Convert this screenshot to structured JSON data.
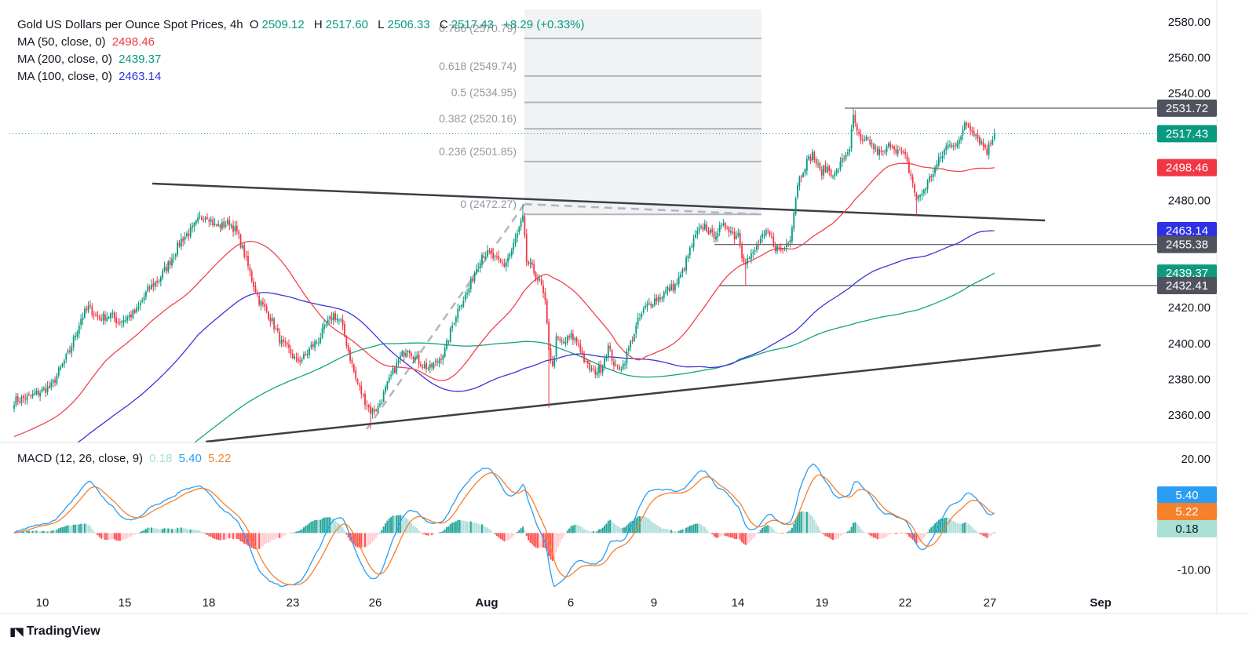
{
  "header": {
    "symbol": "Gold US Dollars per Ounce Spot Prices, 4h",
    "open_label": "O",
    "open": "2509.12",
    "high_label": "H",
    "high": "2517.60",
    "low_label": "L",
    "low": "2506.33",
    "close_label": "C",
    "close": "2517.43",
    "change": "+8.29 (+0.33%)",
    "ma50_label": "MA (50, close, 0)",
    "ma50_value": "2498.46",
    "ma200_label": "MA (200, close, 0)",
    "ma200_value": "2439.37",
    "ma100_label": "MA (100, close, 0)",
    "ma100_value": "2463.14",
    "macd_label": "MACD (12, 26, close, 9)",
    "macd_hist": "0.18",
    "macd_line": "5.40",
    "macd_signal": "5.22"
  },
  "brand": {
    "name": "TradingView"
  },
  "colors": {
    "up": "#089981",
    "down": "#f23645",
    "ma50": "#f0444e",
    "ma100": "#3a35d8",
    "ma200": "#13a37d",
    "macd": "#2a9df4",
    "signal": "#f7802b",
    "trendline": "#3c3f47",
    "fib": "#b2b5be"
  },
  "chart_data": {
    "type": "candlestick",
    "title": "Gold US Dollars per Ounce Spot Prices, 4h",
    "price_axis": {
      "ticks": [
        "2580.00",
        "2560.00",
        "2540.00",
        "2520.00",
        "2500.00",
        "2480.00",
        "2460.00",
        "2440.00",
        "2420.00",
        "2400.00",
        "2380.00",
        "2360.00"
      ],
      "range": [
        2345,
        2587
      ]
    },
    "time_axis": {
      "ticks": [
        "10",
        "15",
        "18",
        "23",
        "26",
        "Aug",
        "6",
        "9",
        "14",
        "19",
        "22",
        "27",
        "Sep"
      ]
    },
    "price_badges": [
      {
        "label": "2531.72",
        "value": 2531.72,
        "color": "#50535e"
      },
      {
        "label": "2517.43",
        "value": 2517.43,
        "color": "#089981"
      },
      {
        "label": "2498.46",
        "value": 2498.46,
        "color": "#f23645"
      },
      {
        "label": "2463.14",
        "value": 2463.14,
        "color": "#2e30e6"
      },
      {
        "label": "2455.38",
        "value": 2455.38,
        "color": "#50535e"
      },
      {
        "label": "2439.37",
        "value": 2439.37,
        "color": "#0f9a7e"
      },
      {
        "label": "2432.41",
        "value": 2432.41,
        "color": "#50535e"
      }
    ],
    "fibonacci": [
      {
        "label": "0 (2472.27)",
        "value": 2472.27
      },
      {
        "label": "0.236 (2501.85)",
        "value": 2501.85
      },
      {
        "label": "0.382 (2520.16)",
        "value": 2520.16
      },
      {
        "label": "0.5 (2534.95)",
        "value": 2534.95
      },
      {
        "label": "0.618 (2549.74)",
        "value": 2549.74
      },
      {
        "label": "0.786 (2570.79)",
        "value": 2570.79
      }
    ],
    "horizontal_levels": [
      2531.72,
      2455.38,
      2432.41
    ],
    "moving_averages": [
      {
        "name": "MA (50, close, 0)",
        "last": 2498.46
      },
      {
        "name": "MA (100, close, 0)",
        "last": 2463.14
      },
      {
        "name": "MA (200, close, 0)",
        "last": 2439.37
      }
    ],
    "macd": {
      "axis_ticks": [
        "20.00",
        "-10.00"
      ],
      "range": [
        -16,
        24
      ],
      "badges": [
        {
          "label": "5.40",
          "value": 5.4,
          "color": "#2a9df4"
        },
        {
          "label": "5.22",
          "value": 5.22,
          "color": "#f7802b"
        },
        {
          "label": "0.18",
          "value": 0.18,
          "color": "#a9dfd5"
        }
      ]
    },
    "price_path": [
      [
        0,
        2368
      ],
      [
        8,
        2370
      ],
      [
        20,
        2376
      ],
      [
        30,
        2396
      ],
      [
        36,
        2414
      ],
      [
        40,
        2420
      ],
      [
        46,
        2414
      ],
      [
        52,
        2416
      ],
      [
        56,
        2412
      ],
      [
        60,
        2414
      ],
      [
        66,
        2418
      ],
      [
        72,
        2430
      ],
      [
        78,
        2436
      ],
      [
        84,
        2446
      ],
      [
        90,
        2458
      ],
      [
        96,
        2464
      ],
      [
        100,
        2470
      ],
      [
        104,
        2472
      ],
      [
        108,
        2466
      ],
      [
        112,
        2466
      ],
      [
        116,
        2468
      ],
      [
        120,
        2462
      ],
      [
        124,
        2450
      ],
      [
        128,
        2436
      ],
      [
        132,
        2424
      ],
      [
        136,
        2418
      ],
      [
        140,
        2410
      ],
      [
        144,
        2400
      ],
      [
        148,
        2396
      ],
      [
        152,
        2390
      ],
      [
        156,
        2392
      ],
      [
        160,
        2398
      ],
      [
        164,
        2402
      ],
      [
        168,
        2410
      ],
      [
        172,
        2416
      ],
      [
        176,
        2412
      ],
      [
        180,
        2396
      ],
      [
        184,
        2380
      ],
      [
        188,
        2370
      ],
      [
        192,
        2362
      ],
      [
        196,
        2364
      ],
      [
        200,
        2374
      ],
      [
        204,
        2384
      ],
      [
        208,
        2392
      ],
      [
        212,
        2398
      ],
      [
        216,
        2392
      ],
      [
        220,
        2388
      ],
      [
        224,
        2386
      ],
      [
        228,
        2390
      ],
      [
        232,
        2396
      ],
      [
        236,
        2410
      ],
      [
        240,
        2422
      ],
      [
        244,
        2428
      ],
      [
        248,
        2440
      ],
      [
        252,
        2450
      ],
      [
        256,
        2450
      ],
      [
        260,
        2446
      ],
      [
        264,
        2444
      ],
      [
        268,
        2452
      ],
      [
        272,
        2464
      ],
      [
        274,
        2470
      ],
      [
        276,
        2446
      ],
      [
        280,
        2440
      ],
      [
        284,
        2432
      ],
      [
        286,
        2422
      ],
      [
        288,
        2398
      ],
      [
        290,
        2386
      ],
      [
        292,
        2402
      ],
      [
        296,
        2400
      ],
      [
        300,
        2404
      ],
      [
        304,
        2400
      ],
      [
        308,
        2388
      ],
      [
        312,
        2384
      ],
      [
        316,
        2386
      ],
      [
        320,
        2398
      ],
      [
        324,
        2386
      ],
      [
        328,
        2388
      ],
      [
        332,
        2400
      ],
      [
        336,
        2412
      ],
      [
        340,
        2420
      ],
      [
        344,
        2424
      ],
      [
        348,
        2426
      ],
      [
        352,
        2430
      ],
      [
        356,
        2432
      ],
      [
        360,
        2440
      ],
      [
        364,
        2452
      ],
      [
        368,
        2462
      ],
      [
        372,
        2466
      ],
      [
        376,
        2460
      ],
      [
        380,
        2464
      ],
      [
        384,
        2466
      ],
      [
        388,
        2460
      ],
      [
        390,
        2462
      ],
      [
        392,
        2450
      ],
      [
        394,
        2446
      ],
      [
        398,
        2450
      ],
      [
        402,
        2458
      ],
      [
        406,
        2462
      ],
      [
        410,
        2454
      ],
      [
        414,
        2452
      ],
      [
        418,
        2460
      ],
      [
        420,
        2474
      ],
      [
        422,
        2490
      ],
      [
        426,
        2500
      ],
      [
        430,
        2506
      ],
      [
        434,
        2496
      ],
      [
        438,
        2498
      ],
      [
        442,
        2494
      ],
      [
        446,
        2502
      ],
      [
        450,
        2510
      ],
      [
        452,
        2526
      ],
      [
        456,
        2512
      ],
      [
        460,
        2514
      ],
      [
        464,
        2508
      ],
      [
        468,
        2506
      ],
      [
        472,
        2512
      ],
      [
        476,
        2508
      ],
      [
        480,
        2504
      ],
      [
        484,
        2490
      ],
      [
        486,
        2480
      ],
      [
        490,
        2486
      ],
      [
        494,
        2494
      ],
      [
        498,
        2502
      ],
      [
        502,
        2510
      ],
      [
        506,
        2512
      ],
      [
        510,
        2514
      ],
      [
        512,
        2524
      ],
      [
        516,
        2520
      ],
      [
        520,
        2514
      ],
      [
        524,
        2508
      ],
      [
        528,
        2517.43
      ]
    ]
  }
}
